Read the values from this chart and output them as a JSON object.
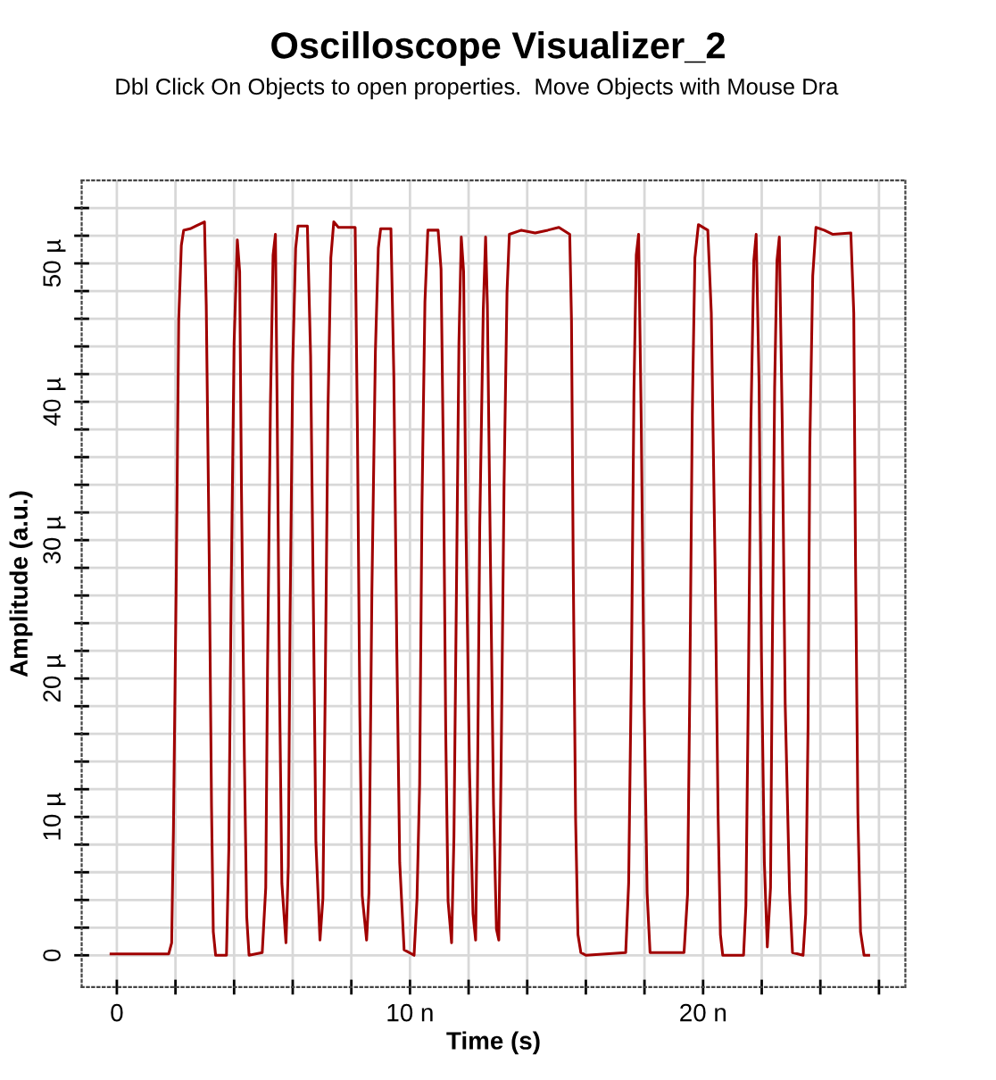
{
  "chart_data": {
    "type": "line",
    "title": "Oscilloscope Visualizer_2",
    "subtitle": "Dbl Click On Objects to open properties.  Move Objects with Mouse Dra",
    "xlabel": "Time (s)",
    "ylabel": "Amplitude (a.u.)",
    "x": [
      -0.2,
      1.77,
      1.87,
      1.93,
      2.03,
      2.11,
      2.2,
      2.28,
      2.5,
      2.7,
      2.99,
      3.05,
      3.15,
      3.23,
      3.29,
      3.37,
      3.74,
      3.82,
      3.9,
      4.0,
      4.11,
      4.19,
      4.25,
      4.35,
      4.43,
      4.51,
      4.96,
      5.08,
      5.14,
      5.24,
      5.33,
      5.41,
      5.47,
      5.55,
      5.63,
      5.77,
      5.85,
      5.91,
      6.0,
      6.1,
      6.18,
      6.5,
      6.61,
      6.71,
      6.79,
      6.93,
      7.03,
      7.11,
      7.2,
      7.3,
      7.4,
      7.56,
      8.13,
      8.21,
      8.29,
      8.37,
      8.52,
      8.6,
      8.7,
      8.82,
      8.92,
      9.0,
      9.35,
      9.45,
      9.55,
      9.65,
      9.8,
      10.14,
      10.24,
      10.33,
      10.41,
      10.51,
      10.61,
      10.96,
      11.06,
      11.14,
      11.22,
      11.3,
      11.42,
      11.5,
      11.59,
      11.67,
      11.75,
      11.83,
      11.91,
      12.03,
      12.15,
      12.24,
      12.3,
      12.38,
      12.5,
      12.58,
      12.64,
      12.74,
      12.85,
      12.95,
      13.03,
      13.11,
      13.21,
      13.31,
      13.39,
      13.8,
      14.27,
      14.7,
      15.08,
      15.45,
      15.51,
      15.57,
      15.65,
      15.73,
      15.83,
      16.0,
      17.36,
      17.46,
      17.56,
      17.64,
      17.72,
      17.8,
      17.89,
      17.99,
      18.09,
      18.19,
      19.35,
      19.47,
      19.55,
      19.63,
      19.72,
      19.84,
      20.16,
      20.28,
      20.41,
      20.51,
      20.59,
      20.67,
      21.38,
      21.46,
      21.54,
      21.63,
      21.73,
      21.81,
      21.91,
      21.99,
      22.09,
      22.19,
      22.3,
      22.36,
      22.44,
      22.52,
      22.6,
      22.7,
      22.8,
      22.95,
      23.05,
      23.41,
      23.5,
      23.58,
      23.64,
      23.74,
      23.85,
      24.13,
      24.43,
      25.04,
      25.14,
      25.2,
      25.28,
      25.37,
      25.49,
      25.65
    ],
    "series": [
      {
        "color": "#a00000",
        "values": [
          0.1,
          0.1,
          0.9,
          9.0,
          27.9,
          45.9,
          51.3,
          52.4,
          52.5,
          52.7,
          53.0,
          47.0,
          29.0,
          10.7,
          1.7,
          0,
          0,
          7.7,
          26.2,
          44.2,
          51.7,
          49.4,
          33.9,
          14.4,
          2.8,
          0,
          0.2,
          4.9,
          20.6,
          39.9,
          50.6,
          52.1,
          39.3,
          19.3,
          5.2,
          0.9,
          6.4,
          24.5,
          42.7,
          51.1,
          52.7,
          52.7,
          43.3,
          24.2,
          8.2,
          1.1,
          4.1,
          19.5,
          39.1,
          50.4,
          53.0,
          52.6,
          52.6,
          37.3,
          17.4,
          4.3,
          1.1,
          4.5,
          26.2,
          43.6,
          51.1,
          52.5,
          52.5,
          41.8,
          22.3,
          6.7,
          0.4,
          0,
          4.1,
          12.4,
          32.6,
          47.2,
          52.4,
          52.4,
          49.6,
          35.8,
          16.1,
          3.9,
          0.9,
          8.6,
          27.3,
          44.2,
          51.9,
          49.4,
          31.1,
          13.5,
          3.0,
          1.1,
          11.4,
          30.9,
          46.6,
          51.9,
          47.0,
          29.4,
          10.9,
          1.9,
          1.1,
          13.9,
          34.1,
          47.9,
          52.1,
          52.4,
          52.2,
          52.4,
          52.6,
          52.1,
          45.9,
          27.9,
          9.9,
          1.5,
          0.2,
          0,
          0.2,
          5.2,
          21.9,
          40.6,
          50.6,
          52.1,
          38.4,
          18.0,
          4.5,
          0.2,
          0.2,
          4.4,
          20.0,
          39.1,
          50.4,
          52.8,
          52.4,
          46.4,
          27.9,
          10.3,
          1.5,
          0,
          0,
          3.6,
          18.5,
          38.4,
          50.2,
          52.1,
          41.2,
          21.7,
          6.7,
          0.6,
          4.9,
          21.7,
          41.0,
          50.2,
          51.9,
          38.4,
          18.2,
          4.5,
          0.2,
          0,
          3.0,
          16.5,
          36.7,
          49.1,
          52.6,
          52.4,
          52.1,
          52.2,
          46.4,
          28.5,
          10.3,
          1.7,
          0,
          0
        ]
      }
    ],
    "xlim": [
      -1.2,
      26.9
    ],
    "ylim": [
      -2.3,
      56
    ],
    "xticks": [
      {
        "value": 0,
        "label": "0"
      },
      {
        "value": 2,
        "label": null
      },
      {
        "value": 4,
        "label": null
      },
      {
        "value": 6,
        "label": null
      },
      {
        "value": 8,
        "label": null
      },
      {
        "value": 10,
        "label": "10 n"
      },
      {
        "value": 12,
        "label": null
      },
      {
        "value": 14,
        "label": null
      },
      {
        "value": 16,
        "label": null
      },
      {
        "value": 18,
        "label": null
      },
      {
        "value": 20,
        "label": "20 n"
      },
      {
        "value": 22,
        "label": null
      },
      {
        "value": 24,
        "label": null
      },
      {
        "value": 26,
        "label": null
      }
    ],
    "yticks": [
      {
        "value": 0,
        "label": "0"
      },
      {
        "value": 2,
        "label": null
      },
      {
        "value": 4,
        "label": null
      },
      {
        "value": 6,
        "label": null
      },
      {
        "value": 8,
        "label": null
      },
      {
        "value": 10,
        "label": "10 µ"
      },
      {
        "value": 12,
        "label": null
      },
      {
        "value": 14,
        "label": null
      },
      {
        "value": 16,
        "label": null
      },
      {
        "value": 18,
        "label": null
      },
      {
        "value": 20,
        "label": "20 µ"
      },
      {
        "value": 22,
        "label": null
      },
      {
        "value": 24,
        "label": null
      },
      {
        "value": 26,
        "label": null
      },
      {
        "value": 28,
        "label": null
      },
      {
        "value": 30,
        "label": "30 µ"
      },
      {
        "value": 32,
        "label": null
      },
      {
        "value": 34,
        "label": null
      },
      {
        "value": 36,
        "label": null
      },
      {
        "value": 38,
        "label": null
      },
      {
        "value": 40,
        "label": "40 µ"
      },
      {
        "value": 42,
        "label": null
      },
      {
        "value": 44,
        "label": null
      },
      {
        "value": 46,
        "label": null
      },
      {
        "value": 48,
        "label": null
      },
      {
        "value": 50,
        "label": "50 µ"
      },
      {
        "value": 52,
        "label": null
      },
      {
        "value": 54,
        "label": null
      }
    ],
    "grid": true,
    "marker": "none",
    "line_style": "solid"
  }
}
